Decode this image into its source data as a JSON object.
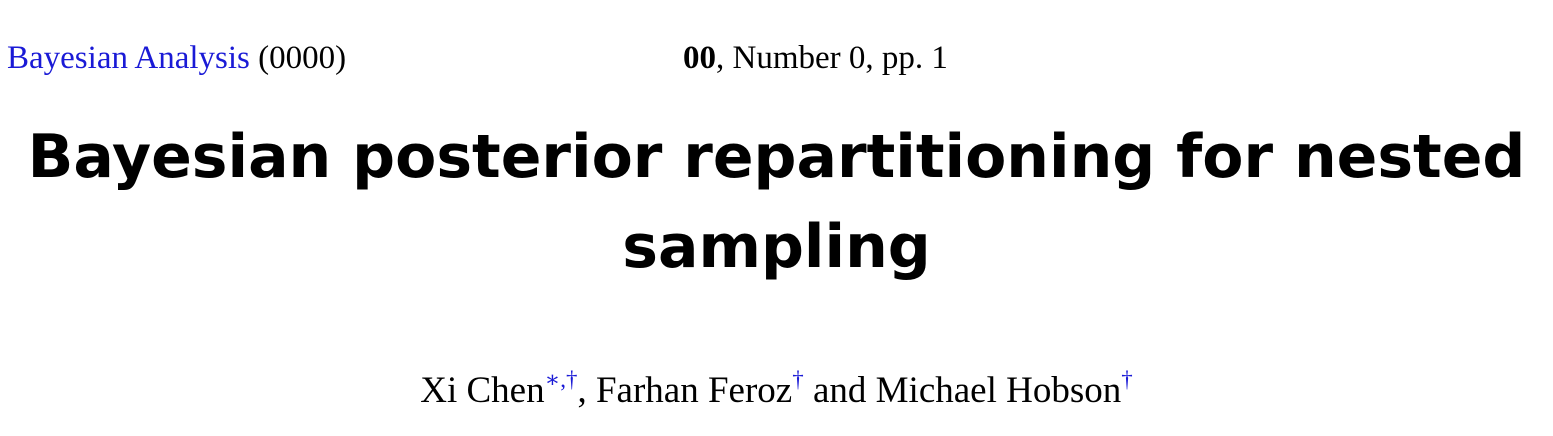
{
  "header": {
    "journal_name": "Bayesian Analysis",
    "year": "(0000)",
    "volume": "00",
    "issue_rest": ", Number 0, pp. 1"
  },
  "title": {
    "line1": "Bayesian posterior repartitioning for nested",
    "line2": "sampling"
  },
  "authors": {
    "author1": "Xi Chen",
    "author1_marks": "∗,†",
    "sep1": ", ",
    "author2": "Farhan Feroz",
    "author2_mark": "†",
    "sep2": " and ",
    "author3": "Michael Hobson",
    "author3_mark": "†"
  },
  "colors": {
    "link": "#1a1ad6",
    "text": "#000000"
  }
}
